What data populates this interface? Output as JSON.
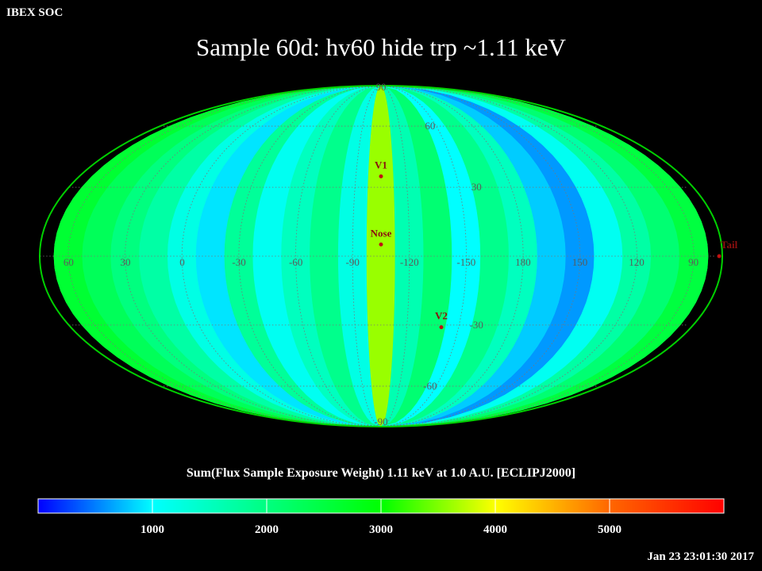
{
  "header": {
    "org": "IBEX SOC"
  },
  "title": "Sample 60d: hv60 hide trp ~1.11 keV",
  "colorbar": {
    "title": "Sum(Flux Sample Exposure Weight)  1.11 keV at 1.0 A.U. [ECLIPJ2000]",
    "ticks": [
      "1000",
      "2000",
      "3000",
      "4000",
      "5000"
    ],
    "colors": [
      "#0000ff",
      "#00ffff",
      "#00ff7f",
      "#00ff00",
      "#ffff00",
      "#ff6600",
      "#ff0000"
    ]
  },
  "timestamp": "Jan 23 23:01:30 2017",
  "map": {
    "lat_labels": [
      "90",
      "60",
      "30",
      "-30",
      "-60",
      "-90"
    ],
    "lon_labels": [
      "60",
      "30",
      "0",
      "-30",
      "-60",
      "-90",
      "-120",
      "-150",
      "180",
      "150",
      "120",
      "90"
    ],
    "markers": {
      "nose": "Nose",
      "v1": "V1",
      "v2": "V2",
      "tail": "Tail"
    }
  },
  "chart_data": {
    "type": "heatmap",
    "projection": "Mollweide",
    "title": "Sample 60d: hv60 hide trp ~1.11 keV",
    "colorbar_label": "Sum(Flux Sample Exposure Weight)  1.11 keV at 1.0 A.U. [ECLIPJ2000]",
    "colorbar_range": [
      0,
      6000
    ],
    "colorbar_ticks": [
      1000,
      2000,
      3000,
      4000,
      5000
    ],
    "center_longitude": -105,
    "longitude_labels": [
      60,
      30,
      0,
      -30,
      -60,
      -90,
      -120,
      -150,
      180,
      150,
      120,
      90
    ],
    "latitude_labels": [
      90,
      60,
      30,
      -30,
      -60,
      -90
    ],
    "markers": [
      {
        "name": "Nose",
        "lon": -105,
        "lat": 5
      },
      {
        "name": "V1",
        "lon": -105,
        "lat": 35
      },
      {
        "name": "V2",
        "lon": -140,
        "lat": -31
      },
      {
        "name": "Tail",
        "lon": 75,
        "lat": -5
      }
    ],
    "band_values_by_longitude": [
      {
        "lon": 75,
        "value": 2800
      },
      {
        "lon": 60,
        "value": 2600
      },
      {
        "lon": 45,
        "value": 2300
      },
      {
        "lon": 30,
        "value": 2000
      },
      {
        "lon": 15,
        "value": 1700
      },
      {
        "lon": 0,
        "value": 1200
      },
      {
        "lon": -15,
        "value": 900
      },
      {
        "lon": -30,
        "value": 1800
      },
      {
        "lon": -45,
        "value": 1100
      },
      {
        "lon": -60,
        "value": 1500
      },
      {
        "lon": -75,
        "value": 1900
      },
      {
        "lon": -90,
        "value": 1200
      },
      {
        "lon": -105,
        "value": 3600
      },
      {
        "lon": -120,
        "value": 1600
      },
      {
        "lon": -135,
        "value": 2100
      },
      {
        "lon": -150,
        "value": 1000
      },
      {
        "lon": -165,
        "value": 1900
      },
      {
        "lon": 180,
        "value": 1500
      },
      {
        "lon": 165,
        "value": 800
      },
      {
        "lon": 150,
        "value": 600
      },
      {
        "lon": 135,
        "value": 1100
      },
      {
        "lon": 120,
        "value": 1700
      },
      {
        "lon": 105,
        "value": 2100
      },
      {
        "lon": 90,
        "value": 2500
      }
    ]
  }
}
